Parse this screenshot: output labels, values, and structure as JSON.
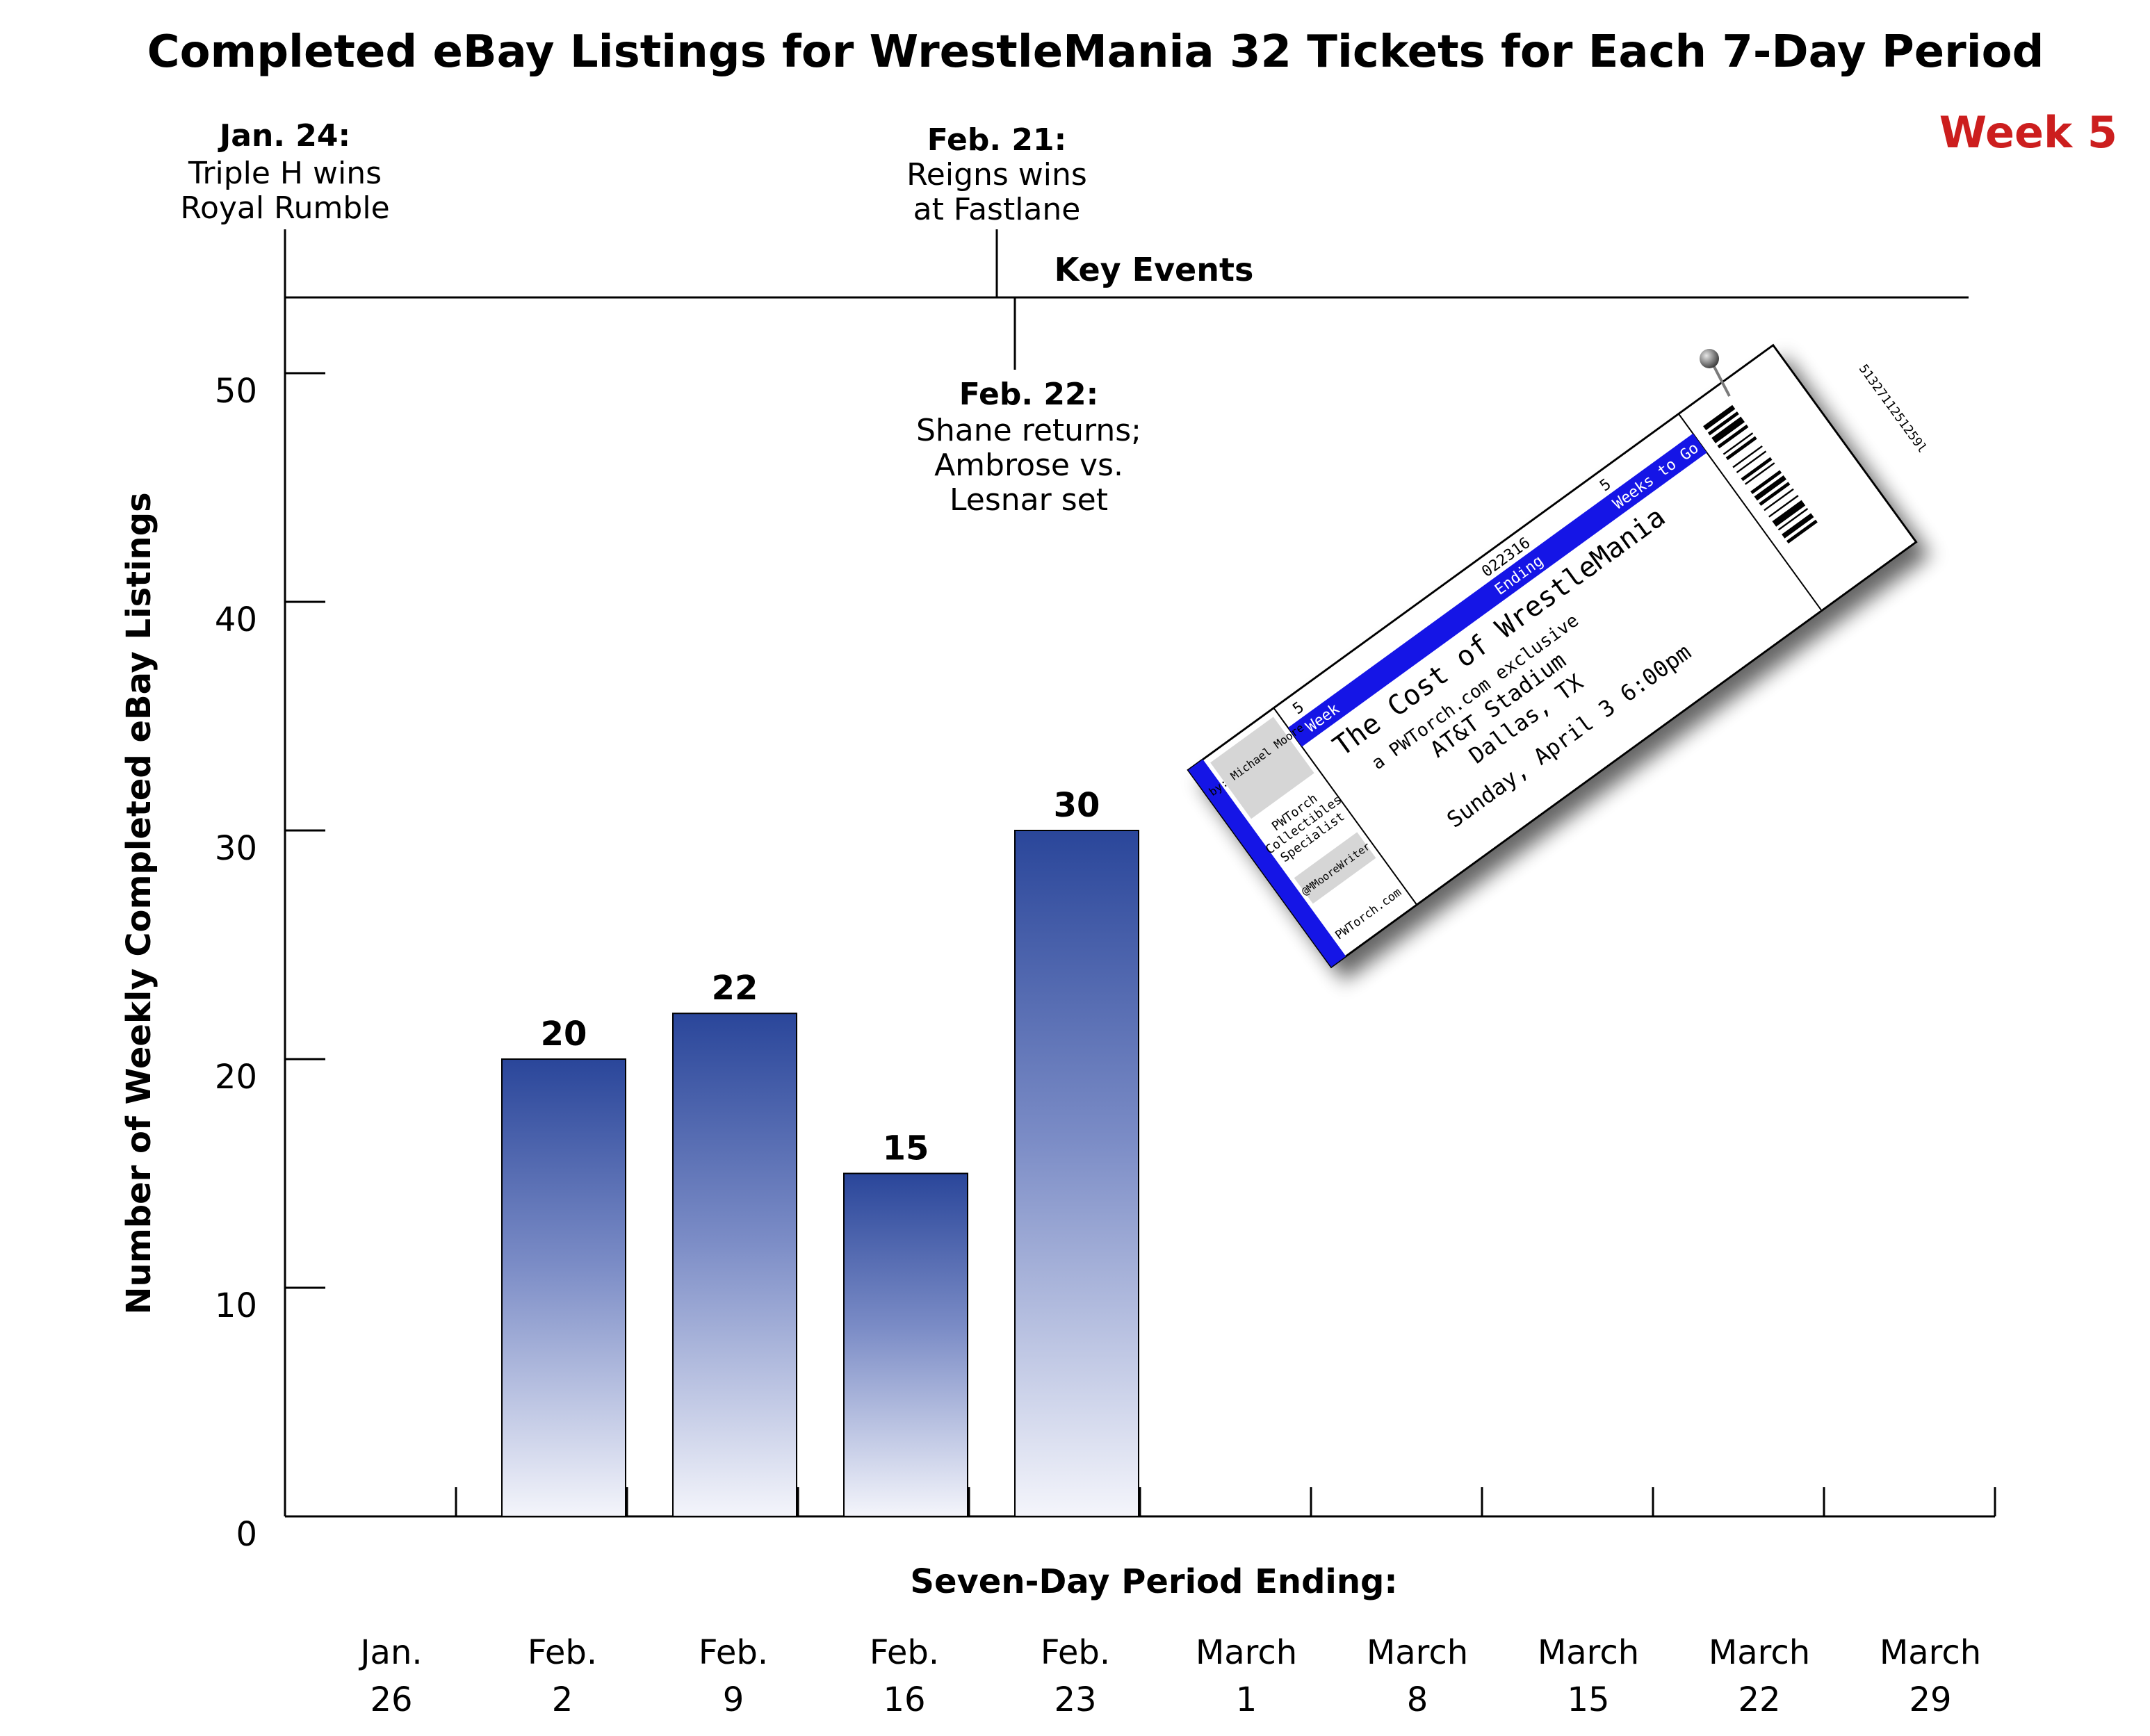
{
  "chart_data": {
    "type": "bar",
    "title": "Completed eBay Listings for WrestleMania 32 Tickets for Each 7-Day Period",
    "subtitle": "Week 5",
    "xlabel": "Seven-Day Period Ending:",
    "ylabel": "Number of Weekly Completed eBay Listings",
    "ylim": [
      0,
      50
    ],
    "yticks": [
      0,
      10,
      20,
      30,
      40,
      50
    ],
    "categories": [
      [
        "Jan.",
        "26"
      ],
      [
        "Feb.",
        "2"
      ],
      [
        "Feb.",
        "9"
      ],
      [
        "Feb.",
        "16"
      ],
      [
        "Feb.",
        "23"
      ],
      [
        "March",
        "1"
      ],
      [
        "March",
        "8"
      ],
      [
        "March",
        "15"
      ],
      [
        "March",
        "22"
      ],
      [
        "March",
        "29"
      ]
    ],
    "values": [
      null,
      20,
      22,
      15,
      30,
      null,
      null,
      null,
      null,
      null
    ],
    "data_labels": [
      "",
      "20",
      "22",
      "15",
      "30",
      "",
      "",
      "",
      "",
      ""
    ],
    "bar_color_top": "#2a469a",
    "bar_color_bottom": "#f4f5fb",
    "grid": false,
    "key_events_label": "Key Events",
    "events": [
      {
        "date": "Jan. 24:",
        "lines": [
          "Triple H wins",
          "Royal Rumble"
        ]
      },
      {
        "date": "Feb. 21:",
        "lines": [
          "Reigns wins",
          "at Fastlane"
        ]
      },
      {
        "date": "Feb. 22:",
        "lines": [
          "Shane returns;",
          "Ambrose vs.",
          "Lesnar set"
        ]
      }
    ]
  },
  "colors": {
    "week_label": "#cc1e1e",
    "ticket_blue": "#1515e6"
  },
  "ticket": {
    "week_caption": "Week",
    "week_number": "5",
    "ending_caption": "Ending",
    "ending_date": "022316",
    "weeks_to_go_caption": "Weeks to Go",
    "weeks_to_go_number": "5",
    "title": "The Cost of WrestleMania",
    "exclusive": "a PWTorch.com exclusive",
    "venue": "AT&T Stadium",
    "city": "Dallas, TX",
    "date": "Sunday, April 3 6:00pm",
    "author": "by: Michael Moore",
    "role_line1": "PWTorch",
    "role_line2": "Collectibles",
    "role_line3": "Specialist",
    "handle": "@MMooreWriter",
    "site": "PWTorch.com",
    "barcode_number": "5132711251259l",
    "pin_icon": "pushpin-icon",
    "barcode_icon": "barcode-icon"
  }
}
